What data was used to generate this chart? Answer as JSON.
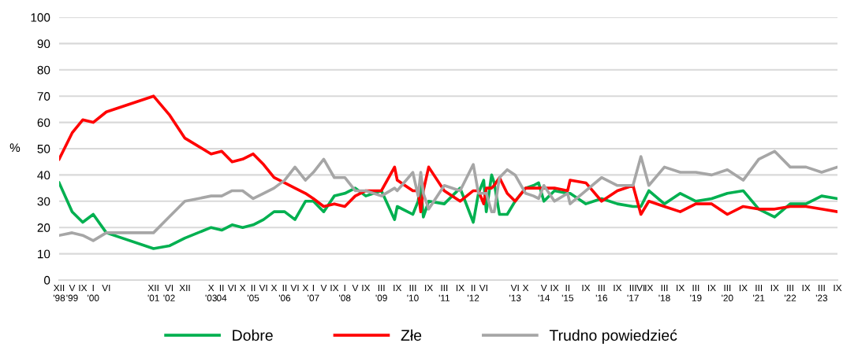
{
  "chart_data": {
    "type": "line",
    "ylabel": "%",
    "ylim": [
      0,
      100
    ],
    "yticks": [
      0,
      10,
      20,
      30,
      40,
      50,
      60,
      70,
      80,
      90,
      100
    ],
    "grid": "y",
    "legend": "bottom",
    "line_style": "solid",
    "marker": "none",
    "xlim": [
      "1998-12",
      "2023-09"
    ],
    "xticks": [
      {
        "value": "1998-12",
        "label": "XII\n'98"
      },
      {
        "value": "1999-05",
        "label": "V\n'99"
      },
      {
        "value": "1999-09",
        "label": "IX"
      },
      {
        "value": "2000-01",
        "label": "I\n'00"
      },
      {
        "value": "2000-06",
        "label": "VI"
      },
      {
        "value": "2001-12",
        "label": "XII\n'01"
      },
      {
        "value": "2002-06",
        "label": "VI\n'02"
      },
      {
        "value": "2002-12",
        "label": "XII"
      },
      {
        "value": "2003-10",
        "label": "X\n'03"
      },
      {
        "value": "2004-02",
        "label": "II\n04"
      },
      {
        "value": "2004-06",
        "label": "VI"
      },
      {
        "value": "2004-10",
        "label": "X"
      },
      {
        "value": "2005-02",
        "label": "II\n'05"
      },
      {
        "value": "2005-06",
        "label": "VI"
      },
      {
        "value": "2005-10",
        "label": "X"
      },
      {
        "value": "2006-02",
        "label": "II\n'06"
      },
      {
        "value": "2006-06",
        "label": "VI"
      },
      {
        "value": "2006-10",
        "label": "X"
      },
      {
        "value": "2007-01",
        "label": "I\n'07"
      },
      {
        "value": "2007-05",
        "label": "V"
      },
      {
        "value": "2007-09",
        "label": "IX"
      },
      {
        "value": "2008-01",
        "label": "I\n'08"
      },
      {
        "value": "2008-05",
        "label": "V"
      },
      {
        "value": "2008-09",
        "label": "IX"
      },
      {
        "value": "2009-03",
        "label": "III\n'09"
      },
      {
        "value": "2009-09",
        "label": "IX"
      },
      {
        "value": "2010-03",
        "label": "III\n'10"
      },
      {
        "value": "2010-09",
        "label": "IX"
      },
      {
        "value": "2011-03",
        "label": "III\n'11"
      },
      {
        "value": "2011-09",
        "label": "IX"
      },
      {
        "value": "2012-02",
        "label": "II\n'12"
      },
      {
        "value": "2012-06",
        "label": "VI"
      },
      {
        "value": "2013-06",
        "label": "VI\n'13"
      },
      {
        "value": "2013-10",
        "label": "X"
      },
      {
        "value": "2014-05",
        "label": "V\n'14"
      },
      {
        "value": "2014-09",
        "label": "IX"
      },
      {
        "value": "2015-02",
        "label": "II\n'15"
      },
      {
        "value": "2015-09",
        "label": "IX"
      },
      {
        "value": "2016-03",
        "label": "III\n'16"
      },
      {
        "value": "2016-09",
        "label": "IX"
      },
      {
        "value": "2017-03",
        "label": "III\n'17"
      },
      {
        "value": "2017-06",
        "label": "VI"
      },
      {
        "value": "2017-09",
        "label": "IX"
      },
      {
        "value": "2018-03",
        "label": "III\n'18"
      },
      {
        "value": "2018-09",
        "label": "IX"
      },
      {
        "value": "2019-03",
        "label": "III\n'19"
      },
      {
        "value": "2019-09",
        "label": "IX"
      },
      {
        "value": "2020-03",
        "label": "III\n'20"
      },
      {
        "value": "2020-09",
        "label": "IX"
      },
      {
        "value": "2021-03",
        "label": "III\n'21"
      },
      {
        "value": "2021-09",
        "label": "IX"
      },
      {
        "value": "2022-03",
        "label": "III\n'22"
      },
      {
        "value": "2022-09",
        "label": "IX"
      },
      {
        "value": "2023-03",
        "label": "III\n'23"
      },
      {
        "value": "2023-09",
        "label": "IX"
      }
    ],
    "x": [
      "1998-12",
      "1999-05",
      "1999-09",
      "2000-01",
      "2000-06",
      "2001-12",
      "2002-06",
      "2002-12",
      "2003-10",
      "2004-02",
      "2004-06",
      "2004-10",
      "2005-02",
      "2005-06",
      "2005-10",
      "2006-02",
      "2006-06",
      "2006-10",
      "2007-01",
      "2007-05",
      "2007-09",
      "2008-01",
      "2008-05",
      "2008-09",
      "2009-03",
      "2009-08",
      "2009-09",
      "2010-03",
      "2010-05",
      "2010-06",
      "2010-07",
      "2010-09",
      "2011-03",
      "2011-09",
      "2012-02",
      "2012-04",
      "2012-06",
      "2012-07",
      "2012-09",
      "2012-10",
      "2012-12",
      "2013-03",
      "2013-06",
      "2013-10",
      "2014-01",
      "2014-03",
      "2014-05",
      "2014-09",
      "2015-02",
      "2015-03",
      "2015-09",
      "2016-03",
      "2016-09",
      "2017-03",
      "2017-06",
      "2017-09",
      "2018-03",
      "2018-09",
      "2019-03",
      "2019-09",
      "2020-03",
      "2020-09",
      "2021-03",
      "2021-09",
      "2022-03",
      "2022-09",
      "2023-03",
      "2023-09"
    ],
    "series": [
      {
        "name": "Dobre",
        "color": "#00b050",
        "values": [
          37,
          26,
          22,
          25,
          18,
          12,
          13,
          16,
          20,
          19,
          21,
          20,
          21,
          23,
          26,
          26,
          23,
          30,
          30,
          26,
          32,
          33,
          35,
          32,
          34,
          23,
          28,
          25,
          30,
          36,
          24,
          30,
          29,
          35,
          22,
          33,
          38,
          26,
          40,
          37,
          25,
          25,
          30,
          35,
          36,
          37,
          30,
          34,
          33,
          33,
          29,
          31,
          29,
          28,
          28,
          34,
          29,
          33,
          30,
          31,
          33,
          34,
          27,
          24,
          29,
          29,
          32,
          31
        ]
      },
      {
        "name": "Złe",
        "color": "#ff0000",
        "values": [
          46,
          56,
          61,
          60,
          64,
          70,
          63,
          54,
          48,
          49,
          45,
          46,
          48,
          44,
          39,
          37,
          35,
          33,
          31,
          28,
          29,
          28,
          32,
          34,
          34,
          43,
          38,
          34,
          34,
          26,
          34,
          43,
          34,
          30,
          34,
          34,
          29,
          35,
          35,
          36,
          39,
          33,
          30,
          35,
          35,
          35,
          35,
          35,
          34,
          38,
          37,
          30,
          34,
          36,
          25,
          30,
          28,
          26,
          29,
          29,
          25,
          28,
          27,
          27,
          28,
          28,
          27,
          26
        ]
      },
      {
        "name": "Trudno powiedzieć",
        "color": "#a6a6a6",
        "values": [
          17,
          18,
          17,
          15,
          18,
          18,
          24,
          30,
          32,
          32,
          34,
          34,
          31,
          33,
          35,
          38,
          43,
          38,
          41,
          46,
          39,
          39,
          34,
          34,
          32,
          35,
          34,
          41,
          32,
          41,
          33,
          27,
          36,
          34,
          44,
          33,
          33,
          33,
          26,
          26,
          39,
          42,
          40,
          33,
          32,
          31,
          36,
          30,
          33,
          29,
          34,
          39,
          36,
          36,
          47,
          36,
          43,
          41,
          41,
          40,
          42,
          38,
          46,
          49,
          43,
          43,
          41,
          43
        ]
      }
    ]
  }
}
